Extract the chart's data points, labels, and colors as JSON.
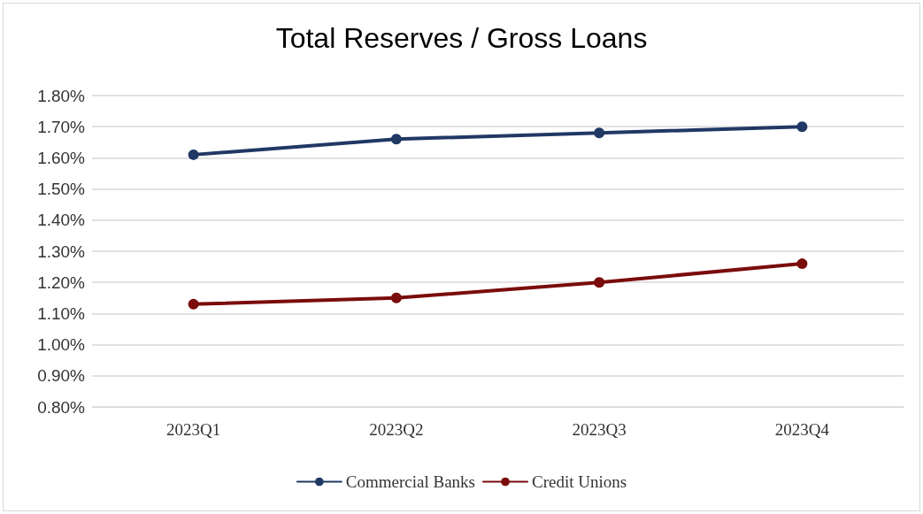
{
  "chart_data": {
    "type": "line",
    "title": "Total Reserves / Gross Loans",
    "categories": [
      "2023Q1",
      "2023Q2",
      "2023Q3",
      "2023Q4"
    ],
    "series": [
      {
        "name": "Commercial Banks",
        "color": "#203864",
        "values": [
          1.61,
          1.66,
          1.68,
          1.7
        ]
      },
      {
        "name": "Credit Unions",
        "color": "#7b0c0c",
        "values": [
          1.13,
          1.15,
          1.2,
          1.26
        ]
      }
    ],
    "ylim": [
      0.8,
      1.8
    ],
    "yticks": [
      {
        "value": 0.8,
        "label": "0.80%"
      },
      {
        "value": 0.9,
        "label": "0.90%"
      },
      {
        "value": 1.0,
        "label": "1.00%"
      },
      {
        "value": 1.1,
        "label": "1.10%"
      },
      {
        "value": 1.2,
        "label": "1.20%"
      },
      {
        "value": 1.3,
        "label": "1.30%"
      },
      {
        "value": 1.4,
        "label": "1.40%"
      },
      {
        "value": 1.5,
        "label": "1.50%"
      },
      {
        "value": 1.6,
        "label": "1.60%"
      },
      {
        "value": 1.7,
        "label": "1.70%"
      },
      {
        "value": 1.8,
        "label": "1.80%"
      }
    ],
    "grid": "y",
    "legend": "bottom",
    "marker": "circle",
    "line_style": "solid"
  }
}
